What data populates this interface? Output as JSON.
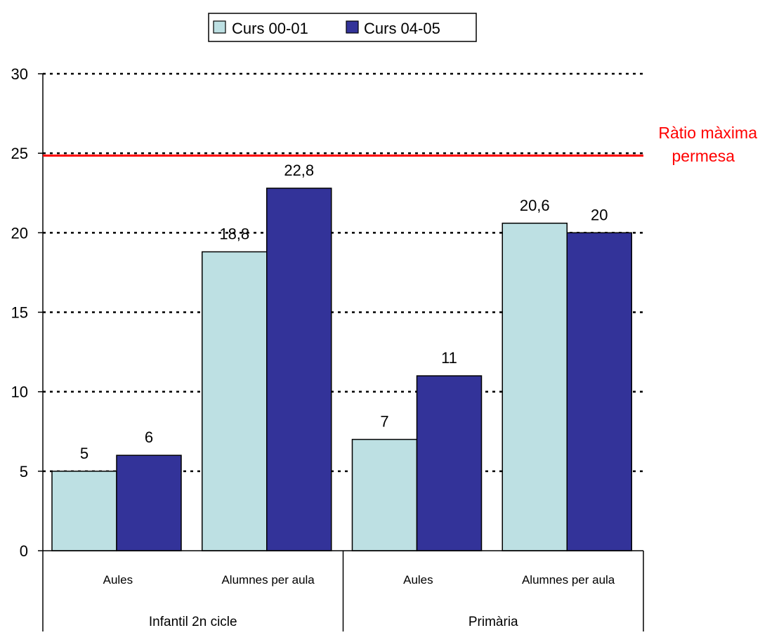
{
  "chart_data": {
    "type": "bar",
    "groups": [
      {
        "name": "Infantil 2n cicle",
        "categories": [
          "Aules",
          "Alumnes per aula"
        ]
      },
      {
        "name": "Primària",
        "categories": [
          "Aules",
          "Alumnes per aula"
        ]
      }
    ],
    "categories": [
      "Aules",
      "Alumnes per aula",
      "Aules",
      "Alumnes per aula"
    ],
    "series": [
      {
        "name": "Curs 00-01",
        "color": "#bde0e3",
        "values": [
          5,
          18.8,
          7,
          20.6
        ],
        "labels": [
          "5",
          "18,8",
          "7",
          "20,6"
        ]
      },
      {
        "name": "Curs 04-05",
        "color": "#333399",
        "values": [
          6,
          22.8,
          11,
          20
        ],
        "labels": [
          "6",
          "22,8",
          "11",
          "20"
        ]
      }
    ],
    "ylim": [
      0,
      30
    ],
    "yticks": [
      "0",
      "5",
      "10",
      "15",
      "20",
      "25",
      "30"
    ],
    "grid": true,
    "legend": "top-center",
    "reference_line": {
      "value": 24.85,
      "label_line1": "Ràtio màxima",
      "label_line2": "permesa",
      "color": "#ff0000"
    }
  }
}
